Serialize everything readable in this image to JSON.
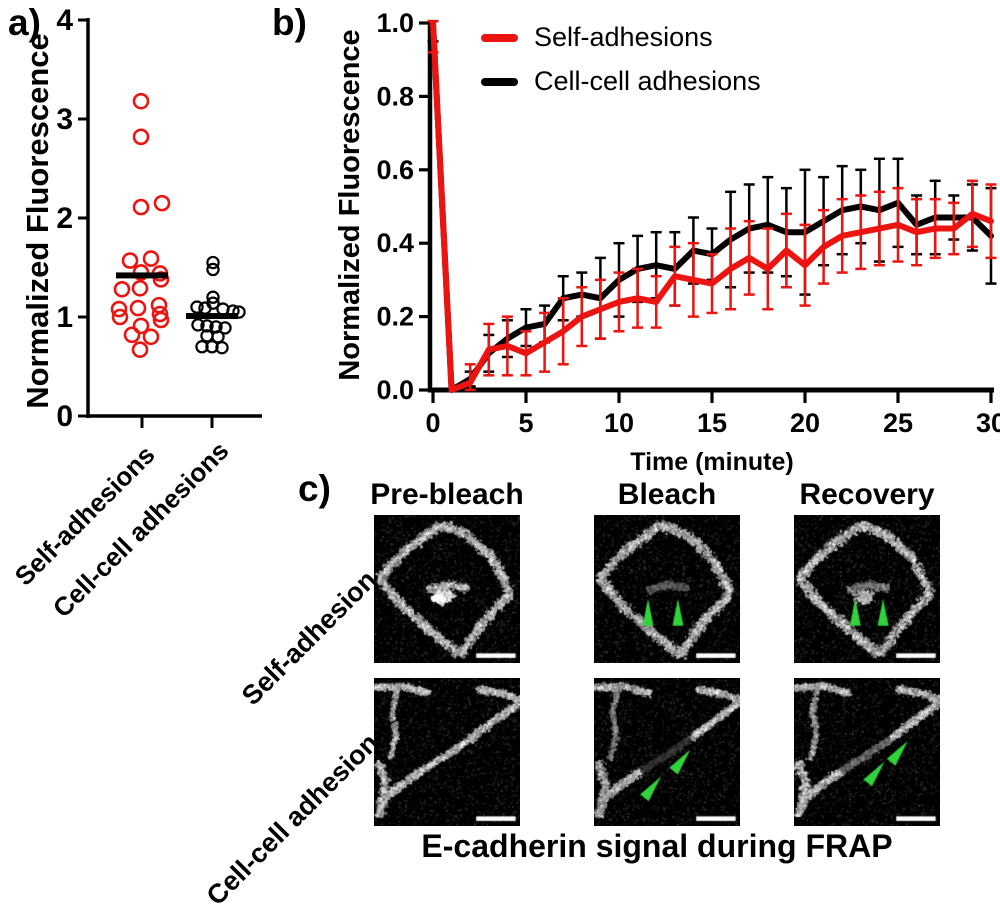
{
  "figure_labels": {
    "a": "a)",
    "b": "b)",
    "c": "c)"
  },
  "chart_data": [
    {
      "panel": "a",
      "type": "scatter",
      "title": "",
      "xlabel": "",
      "ylabel": "Normalized Fluorescence",
      "ylim": [
        0,
        4
      ],
      "yticks": [
        "0",
        "1",
        "2",
        "3",
        "4"
      ],
      "categories": [
        "Self-adhesions",
        "Cell-cell adhesions"
      ],
      "mean_bar_color": "#000000",
      "series": [
        {
          "name": "Self-adhesions",
          "color": "#eb1410",
          "mean": 1.42,
          "values": [
            3.18,
            2.82,
            2.15,
            2.11,
            1.59,
            1.57,
            1.45,
            1.44,
            1.38,
            1.29,
            1.28,
            1.12,
            1.09,
            1.08,
            1.03,
            1.0,
            0.97,
            0.91,
            0.82,
            0.8,
            0.67
          ],
          "jitter": [
            -1,
            -1,
            20,
            -1,
            9,
            -12,
            -1,
            18,
            19,
            -2,
            -20,
            17,
            -4,
            -23,
            18,
            -22,
            19,
            -1,
            -10,
            9,
            -2
          ]
        },
        {
          "name": "Cell-cell adhesions",
          "color": "#000000",
          "mean": 1.01,
          "values": [
            1.55,
            1.48,
            1.2,
            1.14,
            1.1,
            1.09,
            1.08,
            1.06,
            1.05,
            0.92,
            0.91,
            0.9,
            0.89,
            0.81,
            0.8,
            0.7,
            0.7,
            0.69
          ],
          "jitter": [
            1,
            1,
            1,
            1,
            -15,
            -7,
            11,
            21,
            27,
            -14,
            -5,
            4,
            13,
            -5,
            6,
            -10,
            0,
            10
          ]
        }
      ]
    },
    {
      "panel": "b",
      "type": "line",
      "title": "",
      "xlabel": "Time (minute)",
      "ylabel": "Normalized Fluorescence",
      "xlim": [
        0,
        30
      ],
      "ylim": [
        0,
        1
      ],
      "xticks": [
        "0",
        "5",
        "10",
        "15",
        "20",
        "25",
        "30"
      ],
      "yticks": [
        "0.0",
        "0.2",
        "0.4",
        "0.6",
        "0.8",
        "1.0"
      ],
      "grid": false,
      "legend_position": "top-left-inside",
      "x": [
        0,
        1,
        2,
        3,
        4,
        5,
        6,
        7,
        8,
        9,
        10,
        11,
        12,
        13,
        14,
        15,
        16,
        17,
        18,
        19,
        20,
        21,
        22,
        23,
        24,
        25,
        26,
        27,
        28,
        29,
        30
      ],
      "series": [
        {
          "name": "Self-adhesions",
          "color": "#eb1410",
          "values": [
            1.0,
            0.0,
            0.02,
            0.11,
            0.12,
            0.1,
            0.13,
            0.16,
            0.2,
            0.22,
            0.24,
            0.25,
            0.24,
            0.31,
            0.3,
            0.29,
            0.33,
            0.36,
            0.33,
            0.38,
            0.34,
            0.39,
            0.42,
            0.43,
            0.44,
            0.45,
            0.43,
            0.44,
            0.44,
            0.48,
            0.46
          ],
          "errors": [
            0.08,
            0.0,
            0.05,
            0.07,
            0.08,
            0.06,
            0.08,
            0.09,
            0.08,
            0.08,
            0.08,
            0.08,
            0.07,
            0.08,
            0.1,
            0.08,
            0.11,
            0.1,
            0.11,
            0.1,
            0.11,
            0.1,
            0.1,
            0.1,
            0.1,
            0.1,
            0.09,
            0.08,
            0.07,
            0.09,
            0.1
          ]
        },
        {
          "name": "Cell-cell adhesions",
          "color": "#000000",
          "values": [
            1.0,
            0.0,
            0.03,
            0.1,
            0.14,
            0.17,
            0.18,
            0.25,
            0.26,
            0.25,
            0.3,
            0.33,
            0.34,
            0.33,
            0.38,
            0.37,
            0.41,
            0.44,
            0.45,
            0.43,
            0.43,
            0.46,
            0.49,
            0.5,
            0.49,
            0.51,
            0.45,
            0.47,
            0.47,
            0.47,
            0.42
          ],
          "errors": [
            0.05,
            0.0,
            0.02,
            0.05,
            0.05,
            0.05,
            0.05,
            0.06,
            0.06,
            0.11,
            0.1,
            0.09,
            0.09,
            0.1,
            0.09,
            0.07,
            0.13,
            0.12,
            0.13,
            0.12,
            0.17,
            0.12,
            0.12,
            0.1,
            0.14,
            0.12,
            0.08,
            0.1,
            0.06,
            0.09,
            0.13
          ]
        }
      ]
    }
  ],
  "panel_c": {
    "column_headers": [
      "Pre-bleach",
      "Bleach",
      "Recovery"
    ],
    "row_labels": [
      "Self-adhesion",
      "Cell-cell adhesion"
    ],
    "caption": "E-cadherin signal during FRAP",
    "arrow_color": "#32d23c",
    "scalebar_color": "#ffffff",
    "scenes": {
      "self": {
        "outline": [
          [
            0.03,
            0.42
          ],
          [
            0.2,
            0.24
          ],
          [
            0.45,
            0.06
          ],
          [
            0.62,
            0.12
          ],
          [
            0.8,
            0.28
          ],
          [
            0.93,
            0.52
          ],
          [
            0.74,
            0.72
          ],
          [
            0.58,
            0.94
          ],
          [
            0.36,
            0.76
          ],
          [
            0.16,
            0.58
          ],
          [
            0.03,
            0.42
          ]
        ],
        "band": [
          [
            0.36,
            0.5
          ],
          [
            0.5,
            0.465
          ],
          [
            0.64,
            0.49
          ]
        ],
        "blob": [
          0.47,
          0.545
        ]
      },
      "cc": {
        "topleft": [
          [
            0.0,
            0.06
          ],
          [
            0.2,
            0.05
          ],
          [
            0.38,
            0.1
          ]
        ],
        "vert": [
          [
            0.16,
            0.04
          ],
          [
            0.12,
            0.22
          ],
          [
            0.145,
            0.38
          ],
          [
            0.105,
            0.54
          ]
        ],
        "lower": [
          [
            0.02,
            0.93
          ],
          [
            0.07,
            0.8
          ],
          [
            0.19,
            0.71
          ],
          [
            0.32,
            0.62
          ]
        ],
        "mid": [
          [
            0.32,
            0.62
          ],
          [
            0.5,
            0.51
          ],
          [
            0.66,
            0.4
          ]
        ],
        "upper": [
          [
            0.66,
            0.4
          ],
          [
            0.82,
            0.28
          ],
          [
            0.99,
            0.16
          ]
        ],
        "topright": [
          [
            0.7,
            0.07
          ],
          [
            0.88,
            0.1
          ],
          [
            1.0,
            0.145
          ]
        ],
        "blobL": [
          [
            0.02,
            0.56
          ],
          [
            0.075,
            0.7
          ],
          [
            0.045,
            0.86
          ]
        ]
      }
    },
    "images": [
      {
        "id": "self-adhesion-pre-bleach",
        "scene": "self",
        "parts": {
          "outline": 1,
          "band": 1
        },
        "blob": 1,
        "arrows": [],
        "scalebar": true
      },
      {
        "id": "self-adhesion-bleach",
        "scene": "self",
        "parts": {
          "outline": 1,
          "band": 0.5
        },
        "blob": 0,
        "arrows": [
          [
            0.37,
            0.66,
            0
          ],
          [
            0.575,
            0.66,
            0
          ]
        ],
        "scalebar": true
      },
      {
        "id": "self-adhesion-recovery",
        "scene": "self",
        "parts": {
          "outline": 1,
          "band": 0.68
        },
        "blob": 0.45,
        "arrows": [
          [
            0.42,
            0.66,
            0
          ],
          [
            0.61,
            0.66,
            0
          ]
        ],
        "scalebar": true
      },
      {
        "id": "cell-cell-adhesion-pre-bleach",
        "scene": "cc",
        "parts": {
          "topleft": 1,
          "vert": 0.95,
          "lower": 1,
          "mid": 1,
          "upper": 1,
          "topright": 1,
          "blobL": 1
        },
        "arrows": [],
        "scalebar": true
      },
      {
        "id": "cell-cell-adhesion-bleach",
        "scene": "cc",
        "parts": {
          "topleft": 1,
          "vert": 0.7,
          "lower": 1,
          "mid": 0.3,
          "upper": 1,
          "topright": 1,
          "blobL": 0.9
        },
        "arrows": [
          [
            0.4,
            0.74,
            38
          ],
          [
            0.6,
            0.56,
            38
          ]
        ],
        "scalebar": true
      },
      {
        "id": "cell-cell-adhesion-recovery",
        "scene": "cc",
        "parts": {
          "topleft": 1,
          "vert": 0.85,
          "lower": 1,
          "mid": 0.6,
          "upper": 1,
          "topright": 1,
          "blobL": 1
        },
        "arrows": [
          [
            0.56,
            0.64,
            38
          ],
          [
            0.72,
            0.5,
            38
          ]
        ],
        "scalebar": true
      }
    ]
  }
}
